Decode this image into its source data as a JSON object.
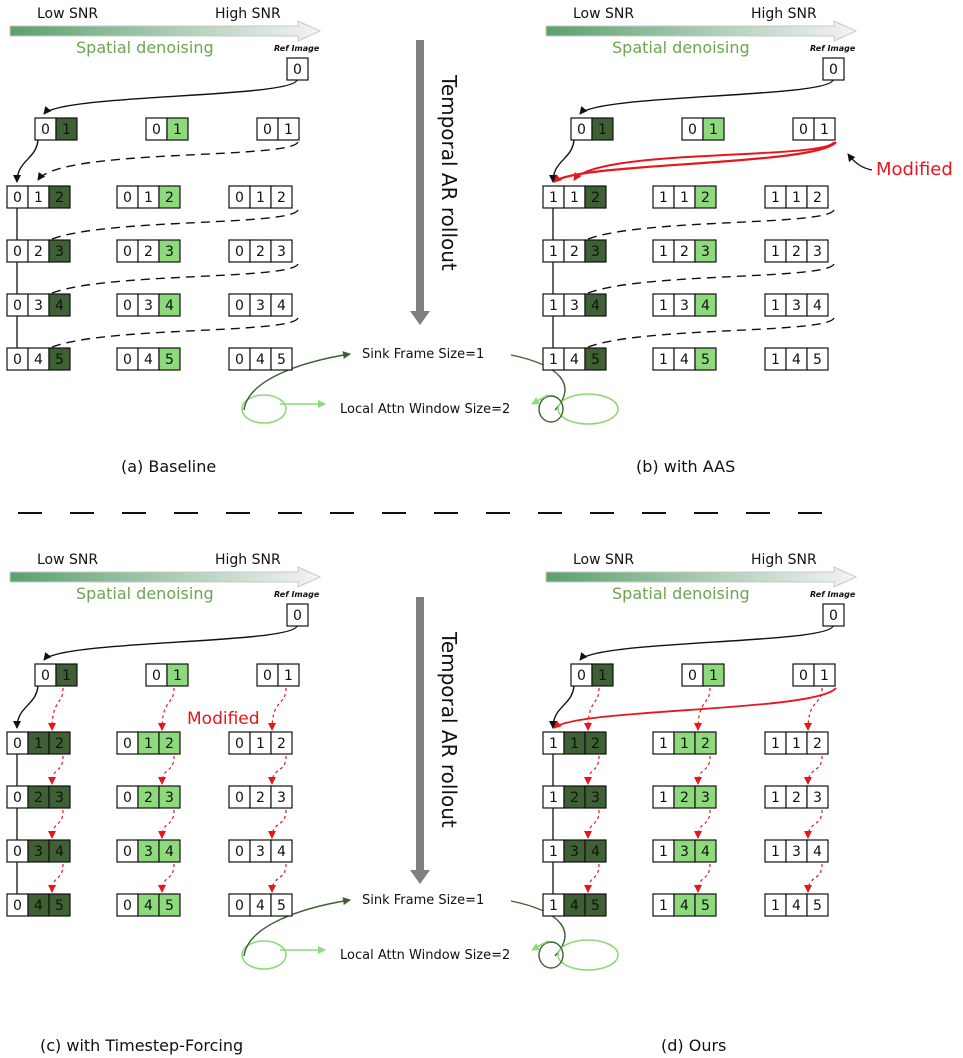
{
  "colors": {
    "dark_green": "#3f5f34",
    "light_green": "#8ed97b",
    "white": "#ffffff",
    "black": "#111111",
    "red": "#e8161b",
    "spatial_text": "#6aa651",
    "sink_arrow": "#3f5f34",
    "local_arrow": "#8ed97b",
    "gray_arrow": "#7f7f7f"
  },
  "header": {
    "low_snr": "Low SNR",
    "high_snr": "High SNR",
    "spatial": "Spatial denoising",
    "ref_label": "Ref Image",
    "ref_value": "0"
  },
  "temporal_label": "Temporal AR rollout",
  "sink_label": "Sink Frame Size=1",
  "local_label": "Local Attn Window Size=2",
  "modified_label": "Modified",
  "panels": [
    {
      "caption": "(a) Baseline",
      "rows": [
        [
          [
            "0",
            "1"
          ],
          [
            "0",
            "1"
          ],
          [
            "0",
            "1"
          ]
        ],
        [
          [
            "0",
            "1",
            "2"
          ],
          [
            "0",
            "1",
            "2"
          ],
          [
            "0",
            "1",
            "2"
          ]
        ],
        [
          [
            "0",
            "2",
            "3"
          ],
          [
            "0",
            "2",
            "3"
          ],
          [
            "0",
            "2",
            "3"
          ]
        ],
        [
          [
            "0",
            "3",
            "4"
          ],
          [
            "0",
            "3",
            "4"
          ],
          [
            "0",
            "3",
            "4"
          ]
        ],
        [
          [
            "0",
            "4",
            "5"
          ],
          [
            "0",
            "4",
            "5"
          ],
          [
            "0",
            "4",
            "5"
          ]
        ]
      ]
    },
    {
      "caption": "(b) with AAS",
      "rows": [
        [
          [
            "0",
            "1"
          ],
          [
            "0",
            "1"
          ],
          [
            "0",
            "1"
          ]
        ],
        [
          [
            "1",
            "1",
            "2"
          ],
          [
            "1",
            "1",
            "2"
          ],
          [
            "1",
            "1",
            "2"
          ]
        ],
        [
          [
            "1",
            "2",
            "3"
          ],
          [
            "1",
            "2",
            "3"
          ],
          [
            "1",
            "2",
            "3"
          ]
        ],
        [
          [
            "1",
            "3",
            "4"
          ],
          [
            "1",
            "3",
            "4"
          ],
          [
            "1",
            "3",
            "4"
          ]
        ],
        [
          [
            "1",
            "4",
            "5"
          ],
          [
            "1",
            "4",
            "5"
          ],
          [
            "1",
            "4",
            "5"
          ]
        ]
      ]
    },
    {
      "caption": "(c) with Timestep-Forcing",
      "rows": [
        [
          [
            "0",
            "1"
          ],
          [
            "0",
            "1"
          ],
          [
            "0",
            "1"
          ]
        ],
        [
          [
            "0",
            "1",
            "2"
          ],
          [
            "0",
            "1",
            "2"
          ],
          [
            "0",
            "1",
            "2"
          ]
        ],
        [
          [
            "0",
            "2",
            "3"
          ],
          [
            "0",
            "2",
            "3"
          ],
          [
            "0",
            "2",
            "3"
          ]
        ],
        [
          [
            "0",
            "3",
            "4"
          ],
          [
            "0",
            "3",
            "4"
          ],
          [
            "0",
            "3",
            "4"
          ]
        ],
        [
          [
            "0",
            "4",
            "5"
          ],
          [
            "0",
            "4",
            "5"
          ],
          [
            "0",
            "4",
            "5"
          ]
        ]
      ]
    },
    {
      "caption": "(d) Ours",
      "rows": [
        [
          [
            "0",
            "1"
          ],
          [
            "0",
            "1"
          ],
          [
            "0",
            "1"
          ]
        ],
        [
          [
            "1",
            "1",
            "2"
          ],
          [
            "1",
            "1",
            "2"
          ],
          [
            "1",
            "1",
            "2"
          ]
        ],
        [
          [
            "1",
            "2",
            "3"
          ],
          [
            "1",
            "2",
            "3"
          ],
          [
            "1",
            "2",
            "3"
          ]
        ],
        [
          [
            "1",
            "3",
            "4"
          ],
          [
            "1",
            "3",
            "4"
          ],
          [
            "1",
            "3",
            "4"
          ]
        ],
        [
          [
            "1",
            "4",
            "5"
          ],
          [
            "1",
            "4",
            "5"
          ],
          [
            "1",
            "4",
            "5"
          ]
        ]
      ]
    }
  ]
}
